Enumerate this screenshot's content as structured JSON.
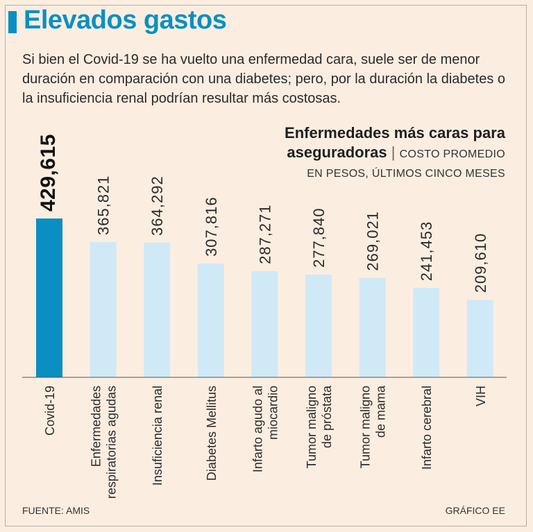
{
  "header": {
    "title": "Elevados gastos",
    "intro": "Si bien el Covid-19  se ha vuelto una enfermedad cara, suele ser de menor duración en comparación con una diabetes; pero, por la duración la diabetes o la insuficiencia renal podrían resultar más costosas."
  },
  "colors": {
    "accent": "#0a8fc2",
    "bar_highlight": "#0a8fc2",
    "bar_default": "#cfe9f7",
    "background": "#fbeee1"
  },
  "chart_data": {
    "type": "bar",
    "title_line1": "Enfermedades más caras para",
    "title_line2": "aseguradoras",
    "title_separator": "|",
    "subtitle_line1": "COSTO PROMEDIO",
    "subtitle_line2": "EN PESOS, ÚLTIMOS CINCO MESES",
    "xlabel": "",
    "ylabel": "",
    "ylim": [
      0,
      429615
    ],
    "grid": false,
    "categories": [
      [
        "Covid-19"
      ],
      [
        "Enfermedades",
        "respiratorias agudas"
      ],
      [
        "Insuficiencia renal"
      ],
      [
        "Diabetes Mellitus"
      ],
      [
        "Infarto agudo al",
        "miocardio"
      ],
      [
        "Tumor maligno",
        "de próstata"
      ],
      [
        "Tumor maligno",
        "de mama"
      ],
      [
        "Infarto cerebral"
      ],
      [
        "VIH"
      ]
    ],
    "values": [
      429615,
      365821,
      364292,
      307816,
      287271,
      277840,
      269021,
      241453,
      209610
    ],
    "value_labels": [
      "429,615",
      "365,821",
      "364,292",
      "307,816",
      "287,271",
      "277,840",
      "269,021",
      "241,453",
      "209,610"
    ],
    "highlight_index": 0
  },
  "footer": {
    "source": "FUENTE: AMIS",
    "credit": "GRÁFICO EE"
  }
}
